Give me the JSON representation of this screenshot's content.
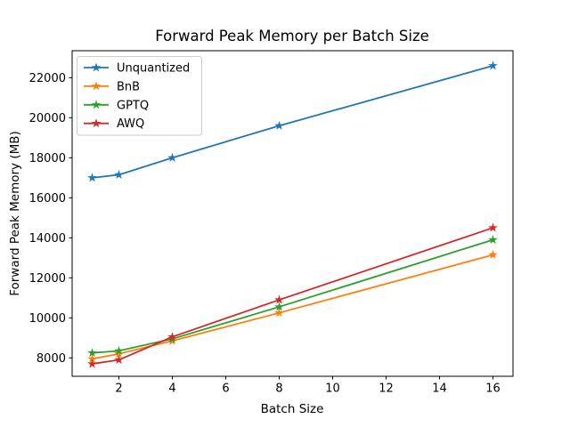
{
  "chart_data": {
    "type": "line",
    "title": "Forward Peak Memory per Batch Size",
    "xlabel": "Batch Size",
    "ylabel": "Forward Peak Memory (MB)",
    "x": [
      1,
      2,
      4,
      8,
      16
    ],
    "series": [
      {
        "name": "Unquantized",
        "color": "#1f77b4",
        "marker": "star",
        "values": [
          17000,
          17150,
          18000,
          19600,
          22600
        ]
      },
      {
        "name": "BnB",
        "color": "#ff7f0e",
        "marker": "star",
        "values": [
          7950,
          8200,
          8850,
          10250,
          13150
        ]
      },
      {
        "name": "GPTQ",
        "color": "#2ca02c",
        "marker": "star",
        "values": [
          8250,
          8350,
          8950,
          10550,
          13900
        ]
      },
      {
        "name": "AWQ",
        "color": "#d62728",
        "marker": "star",
        "values": [
          7700,
          7900,
          9050,
          10900,
          14500
        ]
      }
    ],
    "xticks": [
      2,
      4,
      6,
      8,
      10,
      12,
      14,
      16
    ],
    "yticks": [
      8000,
      10000,
      12000,
      14000,
      16000,
      18000,
      20000,
      22000
    ],
    "xlim": [
      0.25,
      16.75
    ],
    "ylim": [
      7080,
      23350
    ],
    "grid": false,
    "legend_position": "upper left",
    "background": "#ffffff",
    "axis_color": "#000000"
  }
}
